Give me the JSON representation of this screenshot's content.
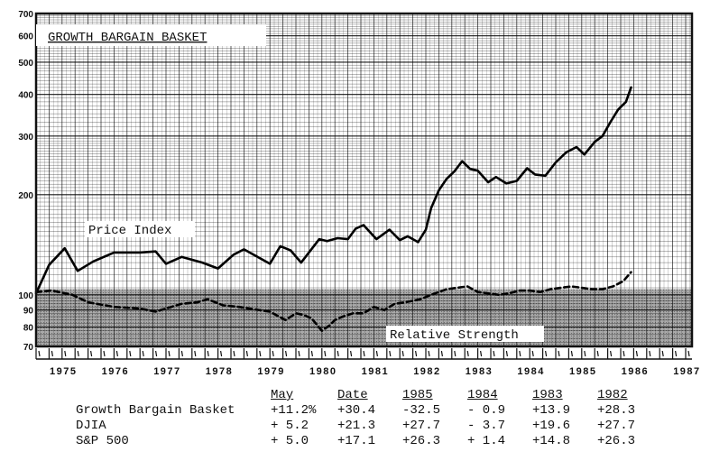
{
  "chart_data": {
    "type": "line",
    "title": "GROWTH BARGAIN BASKET",
    "y_ticks": [
      70,
      80,
      90,
      100,
      200,
      300,
      400,
      500,
      600,
      700
    ],
    "y_scale": "log",
    "x_ticks": [
      "1975",
      "1976",
      "1977",
      "1978",
      "1979",
      "1980",
      "1981",
      "1982",
      "1983",
      "1984",
      "1985",
      "1986",
      "1987"
    ],
    "grid": true,
    "series": [
      {
        "name": "Price Index",
        "style": "solid",
        "x": [
          1975.0,
          1975.25,
          1975.55,
          1975.8,
          1976.1,
          1976.5,
          1977.0,
          1977.3,
          1977.5,
          1977.8,
          1978.2,
          1978.5,
          1978.8,
          1979.0,
          1979.5,
          1979.7,
          1979.9,
          1980.1,
          1980.25,
          1980.45,
          1980.6,
          1980.8,
          1981.0,
          1981.15,
          1981.3,
          1981.55,
          1981.8,
          1982.0,
          1982.15,
          1982.35,
          1982.5,
          1982.6,
          1982.75,
          1982.9,
          1983.05,
          1983.2,
          1983.35,
          1983.5,
          1983.7,
          1983.85,
          1984.05,
          1984.25,
          1984.45,
          1984.6,
          1984.8,
          1985.0,
          1985.2,
          1985.4,
          1985.55,
          1985.75,
          1985.9,
          1986.05,
          1986.2,
          1986.35,
          1986.45
        ],
        "y": [
          101,
          123,
          138,
          118,
          126,
          134,
          134,
          135,
          124,
          130,
          125,
          120,
          132,
          137,
          124,
          140,
          136,
          125,
          134,
          147,
          145,
          148,
          147,
          158,
          162,
          147,
          157,
          146,
          150,
          144,
          157,
          182,
          206,
          223,
          235,
          252,
          239,
          236,
          218,
          226,
          216,
          220,
          240,
          230,
          228,
          250,
          268,
          278,
          264,
          288,
          300,
          330,
          360,
          380,
          420
        ]
      },
      {
        "name": "Relative Strength",
        "style": "dashed",
        "x": [
          1975.0,
          1975.3,
          1975.7,
          1976.0,
          1976.5,
          1977.0,
          1977.3,
          1977.6,
          1977.8,
          1978.1,
          1978.3,
          1978.6,
          1978.9,
          1979.1,
          1979.5,
          1979.8,
          1980.0,
          1980.15,
          1980.3,
          1980.5,
          1980.65,
          1980.75,
          1980.9,
          1981.1,
          1981.3,
          1981.5,
          1981.7,
          1981.9,
          1982.1,
          1982.4,
          1982.6,
          1982.9,
          1983.1,
          1983.3,
          1983.5,
          1983.7,
          1983.9,
          1984.1,
          1984.3,
          1984.5,
          1984.7,
          1984.9,
          1985.1,
          1985.3,
          1985.5,
          1985.7,
          1985.9,
          1986.1,
          1986.3,
          1986.45
        ],
        "y": [
          102,
          103,
          100,
          95,
          92,
          91,
          89,
          92,
          94,
          95,
          97,
          93,
          92,
          91,
          89,
          84,
          88,
          87,
          85,
          78,
          81,
          84,
          86,
          88,
          88,
          92,
          90,
          94,
          95,
          97,
          100,
          104,
          105,
          106,
          102,
          101,
          100,
          101,
          103,
          103,
          102,
          104,
          105,
          106,
          105,
          104,
          104,
          106,
          110,
          117
        ]
      }
    ],
    "annotations": [
      "Price Index",
      "Relative Strength"
    ]
  },
  "table": {
    "headers": [
      "May",
      "Date",
      "1985",
      "1984",
      "1983",
      "1982"
    ],
    "rows": [
      {
        "name": "Growth Bargain Basket",
        "values": [
          "+11.2%",
          "+30.4",
          "-32.5",
          "- 0.9",
          "+13.9",
          "+28.3"
        ]
      },
      {
        "name": "DJIA",
        "values": [
          "+ 5.2",
          "+21.3",
          "+27.7",
          "- 3.7",
          "+19.6",
          "+27.7"
        ]
      },
      {
        "name": "S&P 500",
        "values": [
          "+ 5.0",
          "+17.1",
          "+26.3",
          "+ 1.4",
          "+14.8",
          "+26.3"
        ]
      }
    ]
  }
}
